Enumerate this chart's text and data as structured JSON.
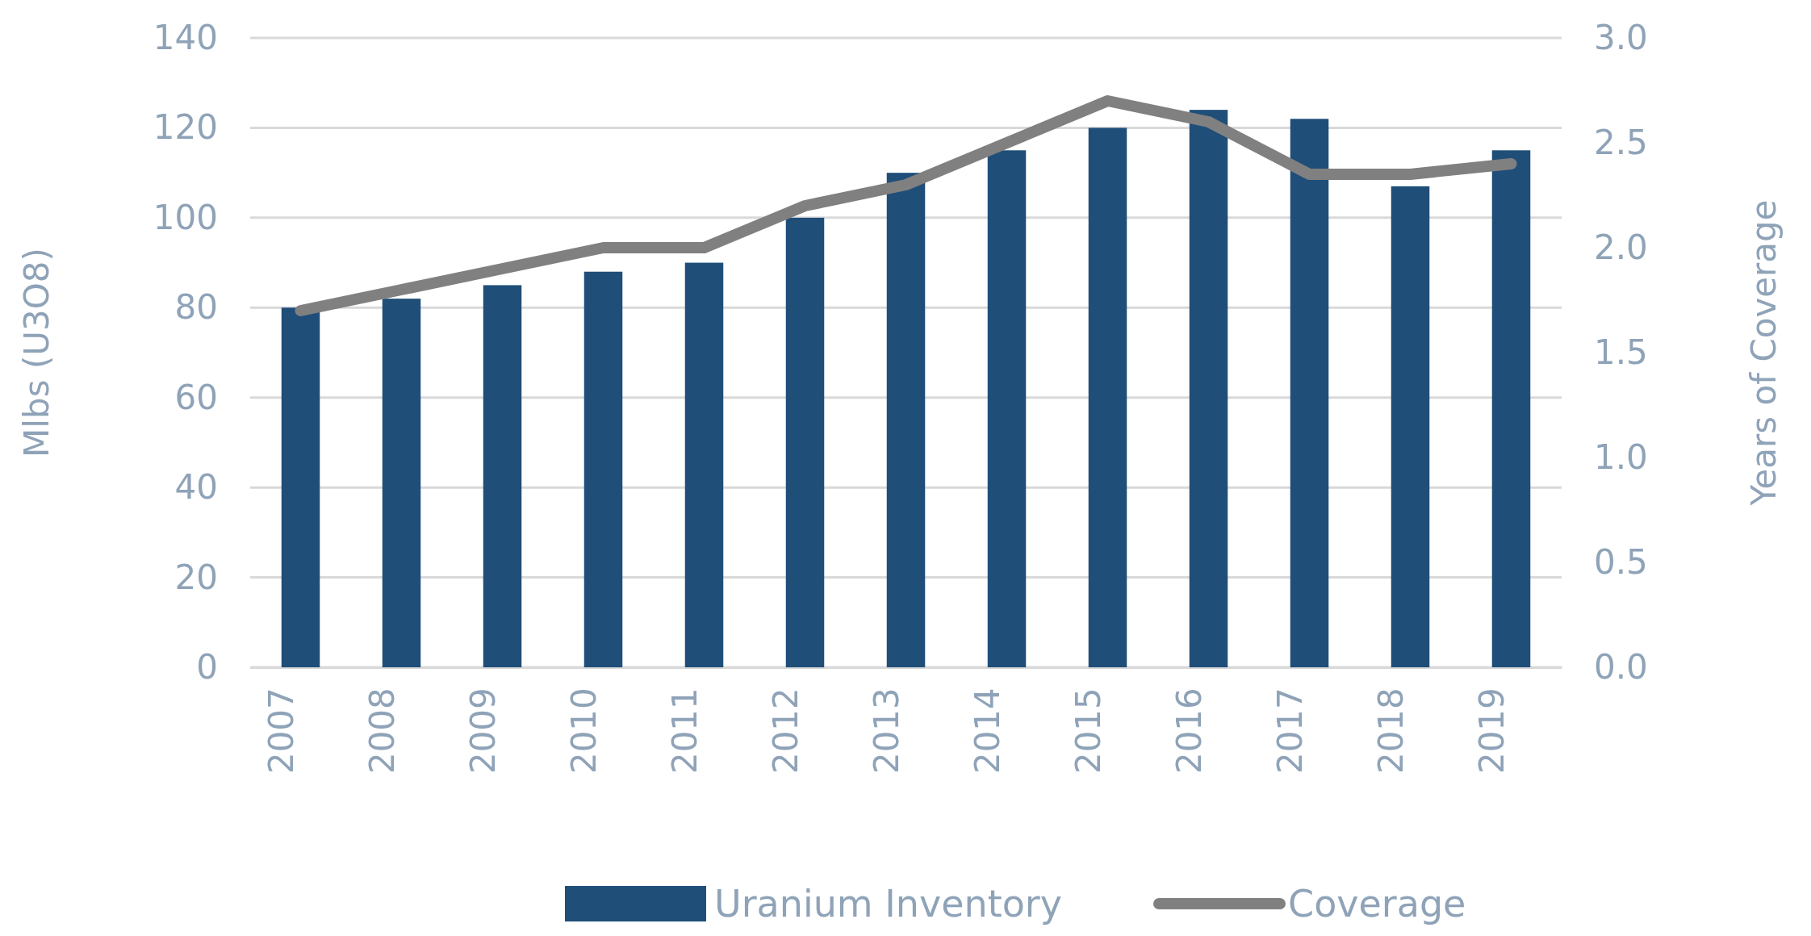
{
  "chart_data": {
    "type": "bar",
    "ylabel": "Mlbs (U3O8)",
    "y2label": "Years of Coverage",
    "categories": [
      "2007",
      "2008",
      "2009",
      "2010",
      "2011",
      "2012",
      "2013",
      "2014",
      "2015",
      "2016",
      "2017",
      "2018",
      "2019"
    ],
    "series": [
      {
        "name": "Uranium Inventory",
        "color": "#1f4e79",
        "values": [
          80,
          82,
          85,
          88,
          90,
          100,
          110,
          115,
          120,
          124,
          122,
          107,
          115
        ]
      },
      {
        "name": "Coverage",
        "type": "line",
        "axis": "y2",
        "color": "#808080",
        "values": [
          1.7,
          1.8,
          1.9,
          2.0,
          2.0,
          2.2,
          2.3,
          2.5,
          2.7,
          2.6,
          2.35,
          2.35,
          2.4
        ]
      }
    ],
    "ylim": [
      0,
      140
    ],
    "yticks": [
      0,
      20,
      40,
      60,
      80,
      100,
      120,
      140
    ],
    "y2lim": [
      0,
      3
    ],
    "y2ticks": [
      {
        "value": 0,
        "label": "0.0"
      },
      0.5,
      {
        "value": 1,
        "label": "1.0"
      },
      1.5,
      {
        "value": 2,
        "label": "2.0"
      },
      2.5,
      {
        "value": 3,
        "label": "3.0"
      }
    ],
    "grid": "y",
    "legend": "bottom",
    "marker": "none",
    "line_style": "solid"
  }
}
